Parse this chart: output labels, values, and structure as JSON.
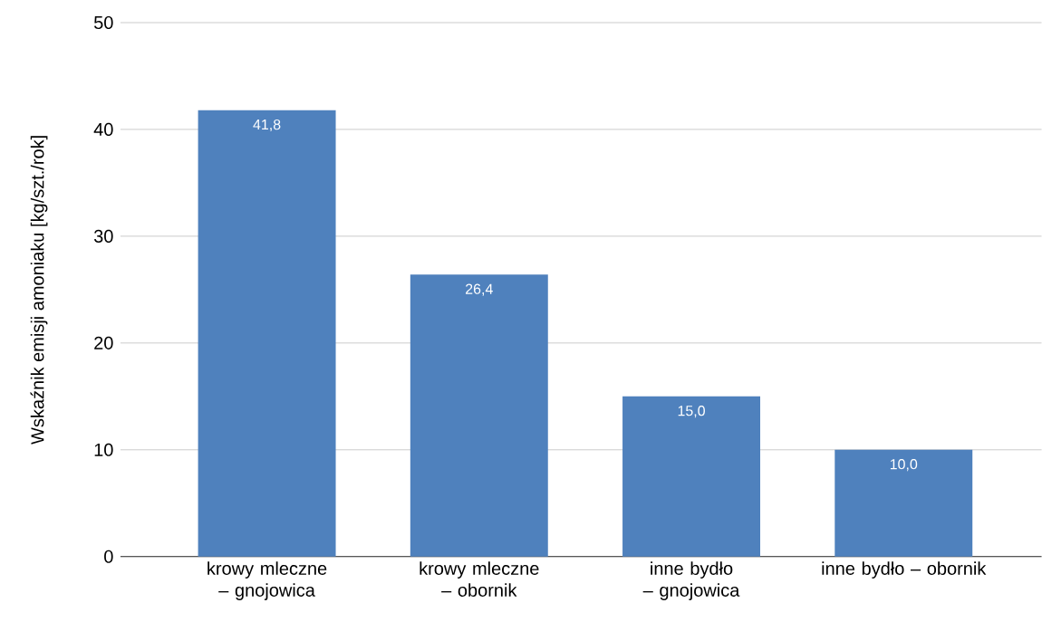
{
  "chart_data": {
    "type": "bar",
    "ylabel": "Wskaźnik emisji amoniaku [kg/szt./rok]",
    "categories": [
      "krowy mleczne – gnojowica",
      "krowy mleczne – obornik",
      "inne bydło – gnojowica",
      "inne bydło – obornik"
    ],
    "values": [
      41.8,
      26.4,
      15.0,
      10.0
    ],
    "value_labels": [
      "41,8",
      "26,4",
      "15,0",
      "10,0"
    ],
    "color": "#4f81bd",
    "ylim": [
      0,
      50
    ],
    "yticks": [
      0,
      10,
      20,
      30,
      40,
      50
    ],
    "grid": "y"
  }
}
